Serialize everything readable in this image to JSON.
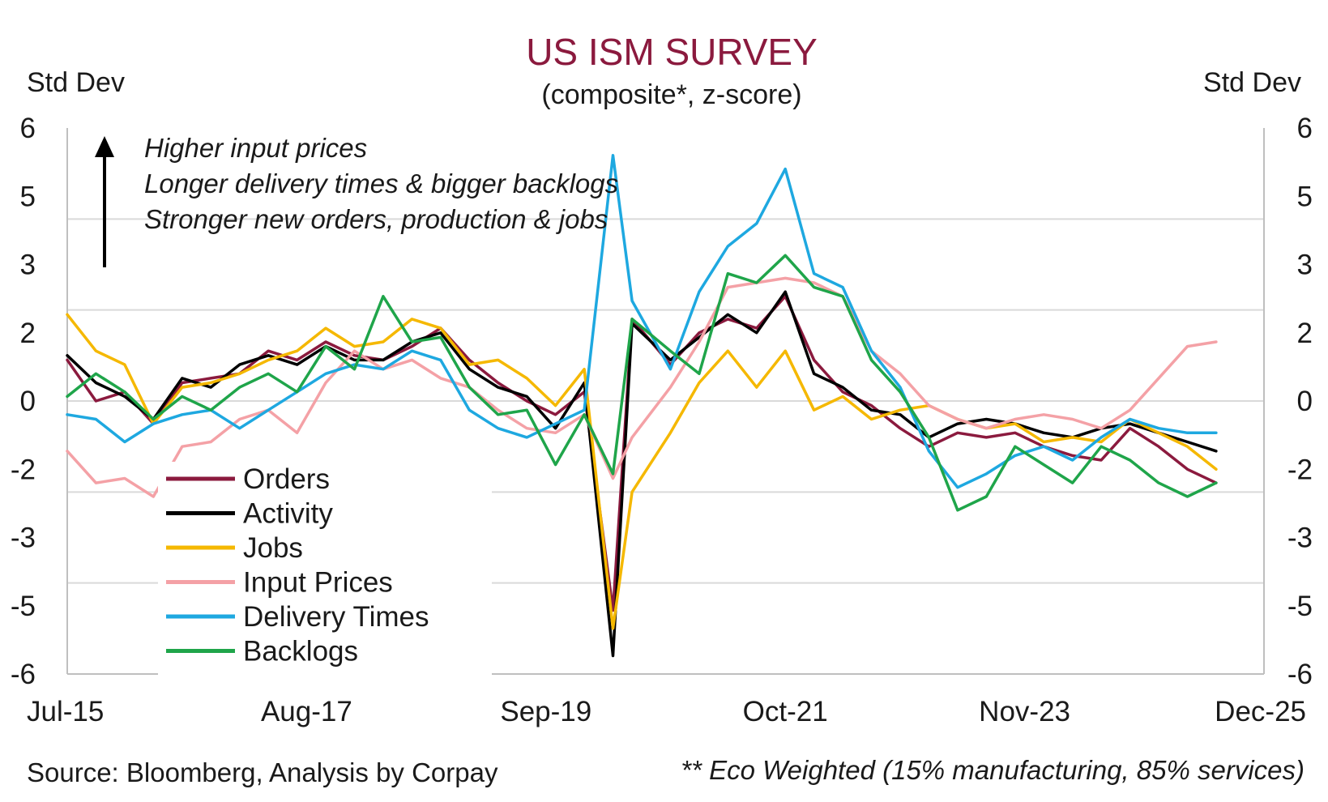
{
  "chart_data": {
    "type": "line",
    "title": "US ISM SURVEY",
    "subtitle": "(composite*, z-score)",
    "ylabel_left": "Std Dev",
    "ylabel_right": "Std Dev",
    "y_ticks": [
      6,
      5,
      3,
      2,
      0,
      -2,
      -3,
      -5,
      -6
    ],
    "ylim": [
      -6,
      6
    ],
    "x_ticks": [
      "Jul-15",
      "Aug-17",
      "Sep-19",
      "Oct-21",
      "Nov-23",
      "Dec-25"
    ],
    "x_range": [
      "2015-07",
      "2025-12"
    ],
    "grid": "horizontal",
    "legend_position": "bottom-left",
    "annotation": {
      "lines": [
        "Higher input prices",
        "Longer delivery times & bigger backlogs",
        "Stronger new orders, production & jobs"
      ],
      "arrow": "up"
    },
    "footer_source": "Source: Bloomberg, Analysis by Corpay",
    "footer_note": "** Eco Weighted (15% manufacturing, 85% services)",
    "colors": {
      "title": "#8b1a3e",
      "grid": "#d9d9d9",
      "axis": "#bfbfbf"
    },
    "series": [
      {
        "name": "Orders",
        "color": "#8b1a3e",
        "points": [
          [
            "2015-07",
            0.9
          ],
          [
            "2015-10",
            0.0
          ],
          [
            "2016-01",
            0.2
          ],
          [
            "2016-04",
            -0.5
          ],
          [
            "2016-07",
            0.4
          ],
          [
            "2016-10",
            0.5
          ],
          [
            "2017-01",
            0.6
          ],
          [
            "2017-04",
            1.1
          ],
          [
            "2017-07",
            0.9
          ],
          [
            "2017-10",
            1.3
          ],
          [
            "2018-01",
            1.0
          ],
          [
            "2018-04",
            0.9
          ],
          [
            "2018-07",
            1.2
          ],
          [
            "2018-10",
            1.6
          ],
          [
            "2019-01",
            0.9
          ],
          [
            "2019-04",
            0.4
          ],
          [
            "2019-07",
            0.0
          ],
          [
            "2019-10",
            -0.3
          ],
          [
            "2020-01",
            0.2
          ],
          [
            "2020-04",
            -4.6
          ],
          [
            "2020-06",
            1.8
          ],
          [
            "2020-10",
            0.8
          ],
          [
            "2021-01",
            1.5
          ],
          [
            "2021-04",
            1.8
          ],
          [
            "2021-07",
            1.6
          ],
          [
            "2021-10",
            2.3
          ],
          [
            "2022-01",
            0.9
          ],
          [
            "2022-04",
            0.2
          ],
          [
            "2022-07",
            -0.1
          ],
          [
            "2022-10",
            -0.6
          ],
          [
            "2023-01",
            -1.0
          ],
          [
            "2023-04",
            -0.7
          ],
          [
            "2023-07",
            -0.8
          ],
          [
            "2023-10",
            -0.7
          ],
          [
            "2024-01",
            -1.0
          ],
          [
            "2024-04",
            -1.2
          ],
          [
            "2024-07",
            -1.3
          ],
          [
            "2024-10",
            -0.6
          ],
          [
            "2025-01",
            -1.0
          ],
          [
            "2025-04",
            -1.5
          ],
          [
            "2025-07",
            -1.8
          ]
        ]
      },
      {
        "name": "Activity",
        "color": "#000000",
        "points": [
          [
            "2015-07",
            1.0
          ],
          [
            "2015-10",
            0.4
          ],
          [
            "2016-01",
            0.1
          ],
          [
            "2016-04",
            -0.4
          ],
          [
            "2016-07",
            0.5
          ],
          [
            "2016-10",
            0.3
          ],
          [
            "2017-01",
            0.8
          ],
          [
            "2017-04",
            1.0
          ],
          [
            "2017-07",
            0.8
          ],
          [
            "2017-10",
            1.2
          ],
          [
            "2018-01",
            0.9
          ],
          [
            "2018-04",
            0.9
          ],
          [
            "2018-07",
            1.3
          ],
          [
            "2018-10",
            1.5
          ],
          [
            "2019-01",
            0.7
          ],
          [
            "2019-04",
            0.3
          ],
          [
            "2019-07",
            0.1
          ],
          [
            "2019-10",
            -0.6
          ],
          [
            "2020-01",
            0.4
          ],
          [
            "2020-04",
            -5.6
          ],
          [
            "2020-06",
            1.7
          ],
          [
            "2020-10",
            0.9
          ],
          [
            "2021-01",
            1.4
          ],
          [
            "2021-04",
            1.9
          ],
          [
            "2021-07",
            1.5
          ],
          [
            "2021-10",
            2.4
          ],
          [
            "2022-01",
            0.6
          ],
          [
            "2022-04",
            0.3
          ],
          [
            "2022-07",
            -0.2
          ],
          [
            "2022-10",
            -0.3
          ],
          [
            "2023-01",
            -0.8
          ],
          [
            "2023-04",
            -0.5
          ],
          [
            "2023-07",
            -0.4
          ],
          [
            "2023-10",
            -0.5
          ],
          [
            "2024-01",
            -0.7
          ],
          [
            "2024-04",
            -0.8
          ],
          [
            "2024-07",
            -0.6
          ],
          [
            "2024-10",
            -0.5
          ],
          [
            "2025-01",
            -0.7
          ],
          [
            "2025-04",
            -0.9
          ],
          [
            "2025-07",
            -1.1
          ]
        ]
      },
      {
        "name": "Jobs",
        "color": "#f5b800",
        "points": [
          [
            "2015-07",
            1.9
          ],
          [
            "2015-10",
            1.1
          ],
          [
            "2016-01",
            0.8
          ],
          [
            "2016-04",
            -0.5
          ],
          [
            "2016-07",
            0.3
          ],
          [
            "2016-10",
            0.4
          ],
          [
            "2017-01",
            0.6
          ],
          [
            "2017-04",
            0.9
          ],
          [
            "2017-07",
            1.1
          ],
          [
            "2017-10",
            1.6
          ],
          [
            "2018-01",
            1.2
          ],
          [
            "2018-04",
            1.3
          ],
          [
            "2018-07",
            1.8
          ],
          [
            "2018-10",
            1.6
          ],
          [
            "2019-01",
            0.8
          ],
          [
            "2019-04",
            0.9
          ],
          [
            "2019-07",
            0.5
          ],
          [
            "2019-10",
            -0.1
          ],
          [
            "2020-01",
            0.7
          ],
          [
            "2020-04",
            -5.0
          ],
          [
            "2020-06",
            -2.0
          ],
          [
            "2020-10",
            -0.7
          ],
          [
            "2021-01",
            0.4
          ],
          [
            "2021-04",
            1.1
          ],
          [
            "2021-07",
            0.3
          ],
          [
            "2021-10",
            1.1
          ],
          [
            "2022-01",
            -0.2
          ],
          [
            "2022-04",
            0.1
          ],
          [
            "2022-07",
            -0.4
          ],
          [
            "2022-10",
            -0.2
          ],
          [
            "2023-01",
            -0.1
          ],
          [
            "2023-04",
            -0.4
          ],
          [
            "2023-07",
            -0.6
          ],
          [
            "2023-10",
            -0.5
          ],
          [
            "2024-01",
            -0.9
          ],
          [
            "2024-04",
            -0.8
          ],
          [
            "2024-07",
            -0.9
          ],
          [
            "2024-10",
            -0.4
          ],
          [
            "2025-01",
            -0.7
          ],
          [
            "2025-04",
            -1.0
          ],
          [
            "2025-07",
            -1.5
          ]
        ]
      },
      {
        "name": "Input Prices",
        "color": "#f4a1a6",
        "points": [
          [
            "2015-07",
            -1.1
          ],
          [
            "2015-10",
            -1.8
          ],
          [
            "2016-01",
            -1.7
          ],
          [
            "2016-04",
            -2.1
          ],
          [
            "2016-07",
            -1.0
          ],
          [
            "2016-10",
            -0.9
          ],
          [
            "2017-01",
            -0.4
          ],
          [
            "2017-04",
            -0.2
          ],
          [
            "2017-07",
            -0.7
          ],
          [
            "2017-10",
            0.4
          ],
          [
            "2018-01",
            1.1
          ],
          [
            "2018-04",
            0.7
          ],
          [
            "2018-07",
            0.9
          ],
          [
            "2018-10",
            0.5
          ],
          [
            "2019-01",
            0.3
          ],
          [
            "2019-04",
            -0.2
          ],
          [
            "2019-07",
            -0.6
          ],
          [
            "2019-10",
            -0.7
          ],
          [
            "2020-01",
            -0.3
          ],
          [
            "2020-04",
            -1.7
          ],
          [
            "2020-06",
            -0.8
          ],
          [
            "2020-10",
            0.3
          ],
          [
            "2021-01",
            1.3
          ],
          [
            "2021-04",
            2.5
          ],
          [
            "2021-07",
            2.6
          ],
          [
            "2021-10",
            2.7
          ],
          [
            "2022-01",
            2.6
          ],
          [
            "2022-04",
            2.3
          ],
          [
            "2022-07",
            1.1
          ],
          [
            "2022-10",
            0.6
          ],
          [
            "2023-01",
            -0.1
          ],
          [
            "2023-04",
            -0.4
          ],
          [
            "2023-07",
            -0.6
          ],
          [
            "2023-10",
            -0.4
          ],
          [
            "2024-01",
            -0.3
          ],
          [
            "2024-04",
            -0.4
          ],
          [
            "2024-07",
            -0.6
          ],
          [
            "2024-10",
            -0.2
          ],
          [
            "2025-01",
            0.5
          ],
          [
            "2025-04",
            1.2
          ],
          [
            "2025-07",
            1.3
          ]
        ]
      },
      {
        "name": "Delivery Times",
        "color": "#1ea8e0",
        "points": [
          [
            "2015-07",
            -0.3
          ],
          [
            "2015-10",
            -0.4
          ],
          [
            "2016-01",
            -0.9
          ],
          [
            "2016-04",
            -0.5
          ],
          [
            "2016-07",
            -0.3
          ],
          [
            "2016-10",
            -0.2
          ],
          [
            "2017-01",
            -0.6
          ],
          [
            "2017-04",
            -0.2
          ],
          [
            "2017-07",
            0.2
          ],
          [
            "2017-10",
            0.6
          ],
          [
            "2018-01",
            0.8
          ],
          [
            "2018-04",
            0.7
          ],
          [
            "2018-07",
            1.1
          ],
          [
            "2018-10",
            0.9
          ],
          [
            "2019-01",
            -0.2
          ],
          [
            "2019-04",
            -0.6
          ],
          [
            "2019-07",
            -0.8
          ],
          [
            "2019-10",
            -0.5
          ],
          [
            "2020-01",
            -0.2
          ],
          [
            "2020-04",
            5.4
          ],
          [
            "2020-06",
            2.2
          ],
          [
            "2020-10",
            0.7
          ],
          [
            "2021-01",
            2.4
          ],
          [
            "2021-04",
            3.4
          ],
          [
            "2021-07",
            3.9
          ],
          [
            "2021-10",
            5.1
          ],
          [
            "2022-01",
            2.8
          ],
          [
            "2022-04",
            2.5
          ],
          [
            "2022-07",
            1.1
          ],
          [
            "2022-10",
            0.3
          ],
          [
            "2023-01",
            -1.1
          ],
          [
            "2023-04",
            -1.9
          ],
          [
            "2023-07",
            -1.6
          ],
          [
            "2023-10",
            -1.2
          ],
          [
            "2024-01",
            -1.0
          ],
          [
            "2024-04",
            -1.3
          ],
          [
            "2024-07",
            -0.8
          ],
          [
            "2024-10",
            -0.4
          ],
          [
            "2025-01",
            -0.6
          ],
          [
            "2025-04",
            -0.7
          ],
          [
            "2025-07",
            -0.7
          ]
        ]
      },
      {
        "name": "Backlogs",
        "color": "#1fa54a",
        "points": [
          [
            "2015-07",
            0.1
          ],
          [
            "2015-10",
            0.6
          ],
          [
            "2016-01",
            0.2
          ],
          [
            "2016-04",
            -0.4
          ],
          [
            "2016-07",
            0.1
          ],
          [
            "2016-10",
            -0.2
          ],
          [
            "2017-01",
            0.3
          ],
          [
            "2017-04",
            0.6
          ],
          [
            "2017-07",
            0.2
          ],
          [
            "2017-10",
            1.2
          ],
          [
            "2018-01",
            0.7
          ],
          [
            "2018-04",
            2.3
          ],
          [
            "2018-07",
            1.3
          ],
          [
            "2018-10",
            1.4
          ],
          [
            "2019-01",
            0.3
          ],
          [
            "2019-04",
            -0.3
          ],
          [
            "2019-07",
            -0.2
          ],
          [
            "2019-10",
            -1.4
          ],
          [
            "2020-01",
            -0.3
          ],
          [
            "2020-04",
            -1.6
          ],
          [
            "2020-06",
            1.8
          ],
          [
            "2020-10",
            1.1
          ],
          [
            "2021-01",
            0.6
          ],
          [
            "2021-04",
            2.8
          ],
          [
            "2021-07",
            2.6
          ],
          [
            "2021-10",
            3.2
          ],
          [
            "2022-01",
            2.5
          ],
          [
            "2022-04",
            2.3
          ],
          [
            "2022-07",
            0.9
          ],
          [
            "2022-10",
            0.2
          ],
          [
            "2023-01",
            -0.8
          ],
          [
            "2023-04",
            -2.4
          ],
          [
            "2023-07",
            -2.1
          ],
          [
            "2023-10",
            -1.0
          ],
          [
            "2024-01",
            -1.4
          ],
          [
            "2024-04",
            -1.8
          ],
          [
            "2024-07",
            -1.0
          ],
          [
            "2024-10",
            -1.3
          ],
          [
            "2025-01",
            -1.8
          ],
          [
            "2025-04",
            -2.1
          ],
          [
            "2025-07",
            -1.8
          ]
        ]
      }
    ]
  }
}
